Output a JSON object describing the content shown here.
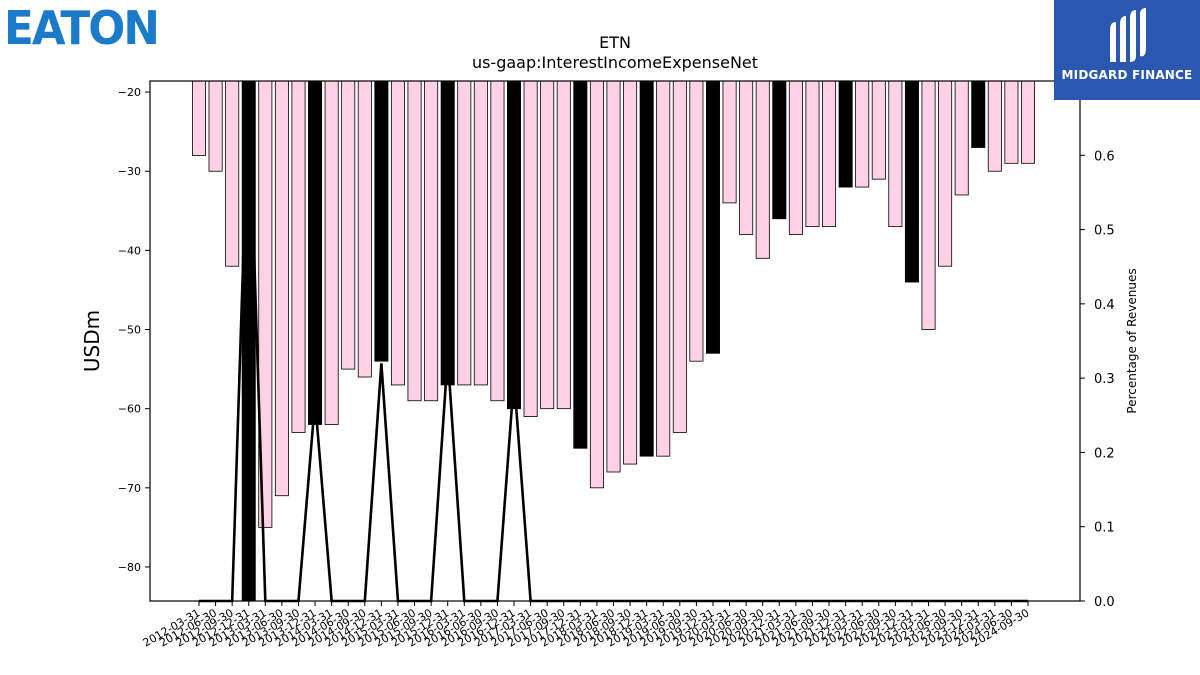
{
  "brand": {
    "left_logo_text": "EATON",
    "right_logo_text": "MIDGARD FINANCE",
    "eaton_color": "#1b7ac9",
    "midgard_bg": "#2a57b0"
  },
  "chart_data": {
    "type": "bar",
    "title": "ETN",
    "subtitle": "us-gaap:InterestIncomeExpenseNet",
    "ylabel": "USDm",
    "y2label": "Percentage of Revenues",
    "ylim": [
      -84.3,
      -18.6
    ],
    "y_ticks": [
      -20,
      -30,
      -40,
      -50,
      -60,
      -70,
      -80
    ],
    "y2lim": [
      0.0,
      0.7
    ],
    "y2_ticks": [
      0.0,
      0.1,
      0.2,
      0.3,
      0.4,
      0.5,
      0.6,
      0.7
    ],
    "colors": {
      "bar_pink": "#ffd1e6",
      "bar_black": "#000000",
      "edge": "#000000",
      "line": "#000000"
    },
    "categories": [
      "2012-03-31",
      "2012-06-30",
      "2012-09-30",
      "2012-12-31",
      "2013-03-31",
      "2013-06-30",
      "2013-09-30",
      "2013-12-31",
      "2014-03-31",
      "2014-06-30",
      "2014-09-30",
      "2014-12-31",
      "2015-03-31",
      "2015-06-30",
      "2015-09-30",
      "2015-12-31",
      "2016-03-31",
      "2016-06-30",
      "2016-09-30",
      "2016-12-31",
      "2017-03-31",
      "2017-06-30",
      "2017-09-30",
      "2017-12-31",
      "2018-03-31",
      "2018-06-30",
      "2018-09-30",
      "2018-12-31",
      "2019-03-31",
      "2019-06-30",
      "2019-09-30",
      "2019-12-31",
      "2020-03-31",
      "2020-06-30",
      "2020-09-30",
      "2020-12-31",
      "2021-03-31",
      "2021-06-30",
      "2021-09-30",
      "2021-12-31",
      "2022-03-31",
      "2022-06-30",
      "2022-09-30",
      "2022-12-31",
      "2023-03-31",
      "2023-06-30",
      "2023-09-30",
      "2023-12-31",
      "2024-03-31",
      "2024-06-30",
      "2024-09-30"
    ],
    "x_tick_labels": [
      "2012-03-31",
      "2012-06-30",
      "2012-09-30",
      "2012-12-31",
      "2013-03-31",
      "2013-06-30",
      "2013-09-30",
      "2013-12-31",
      "2014-03-31",
      "2014-06-30",
      "2014-09-30",
      "2014-12-31",
      "2015-03-31",
      "2015-06-30",
      "2015-09-30",
      "2015-12-31",
      "2016-03-31",
      "2016-06-30",
      "2016-09-30",
      "2016-12-31",
      "2017-03-31",
      "2017-06-30",
      "2017-09-30",
      "2017-12-31",
      "2018-03-31",
      "2018-06-30",
      "2018-09-30",
      "2018-12-31",
      "2019-03-31",
      "2019-06-30",
      "2019-09-30",
      "2019-12-31",
      "2020-03-31",
      "2020-06-30",
      "2020-09-30",
      "2020-12-31",
      "2021-03-31",
      "2021-06-30",
      "2021-09-30",
      "2021-12-31",
      "2022-03-31",
      "2022-06-30",
      "2022-09-30",
      "2022-12-31",
      "2023-03-31",
      "2023-06-30",
      "2023-09-30",
      "2023-12-31",
      "2024-03-31",
      "2024-06-30",
      "2024-09-30"
    ],
    "values": [
      -28,
      -30,
      -42,
      -85,
      -75,
      -71,
      -63,
      -62,
      -62,
      -55,
      -56,
      -54,
      -57,
      -59,
      -59,
      -57,
      -57,
      -57,
      -59,
      -60,
      -61,
      -60,
      -60,
      -65,
      -70,
      -68,
      -67,
      -66,
      -66,
      -63,
      -54,
      -53,
      -34,
      -38,
      -41,
      -36,
      -38,
      -37,
      -37,
      -32,
      -32,
      -31,
      -37,
      -44,
      -50,
      -42,
      -33,
      -27,
      -30,
      -29,
      -29
    ],
    "highlight": [
      false,
      false,
      false,
      true,
      false,
      false,
      false,
      true,
      false,
      false,
      false,
      true,
      false,
      false,
      false,
      true,
      false,
      false,
      false,
      true,
      false,
      false,
      false,
      true,
      false,
      false,
      false,
      true,
      false,
      false,
      false,
      true,
      false,
      false,
      false,
      true,
      false,
      false,
      false,
      true,
      false,
      false,
      false,
      true,
      false,
      false,
      false,
      true,
      false,
      false,
      false
    ],
    "pct_of_revenues": [
      0,
      0,
      0,
      0.69,
      0,
      0,
      0,
      0.27,
      0,
      0,
      0,
      0.32,
      0,
      0,
      0,
      0.33,
      0,
      0,
      0,
      0.3,
      0,
      0,
      0,
      0,
      0,
      0,
      0,
      0,
      0,
      0,
      0,
      0,
      0,
      0,
      0,
      0,
      0,
      0,
      0,
      0,
      0,
      0,
      0,
      0,
      0,
      0,
      0,
      0,
      0,
      0,
      0
    ]
  }
}
